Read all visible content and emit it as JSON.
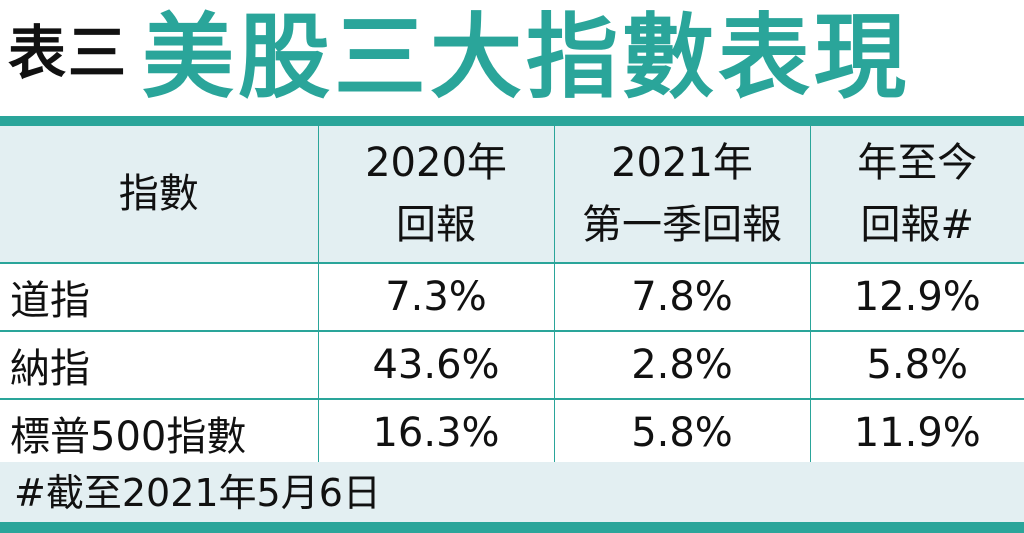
{
  "title": {
    "label": "表三",
    "main": "美股三大指數表現"
  },
  "table": {
    "headers": [
      [
        "指數"
      ],
      [
        "2020年",
        "回報"
      ],
      [
        "2021年",
        "第一季回報"
      ],
      [
        "年至今",
        "回報#"
      ]
    ],
    "rows": [
      {
        "name": "道指",
        "values": [
          "7.3%",
          "7.8%",
          "12.9%"
        ]
      },
      {
        "name": "納指",
        "values": [
          "43.6%",
          "2.8%",
          "5.8%"
        ]
      },
      {
        "name": "標普500指數",
        "values": [
          "16.3%",
          "5.8%",
          "11.9%"
        ]
      }
    ]
  },
  "footnote": "#截至2021年5月6日",
  "colors": {
    "accent": "#2aa59a",
    "header_bg": "#e3eff2",
    "text": "#111111"
  }
}
